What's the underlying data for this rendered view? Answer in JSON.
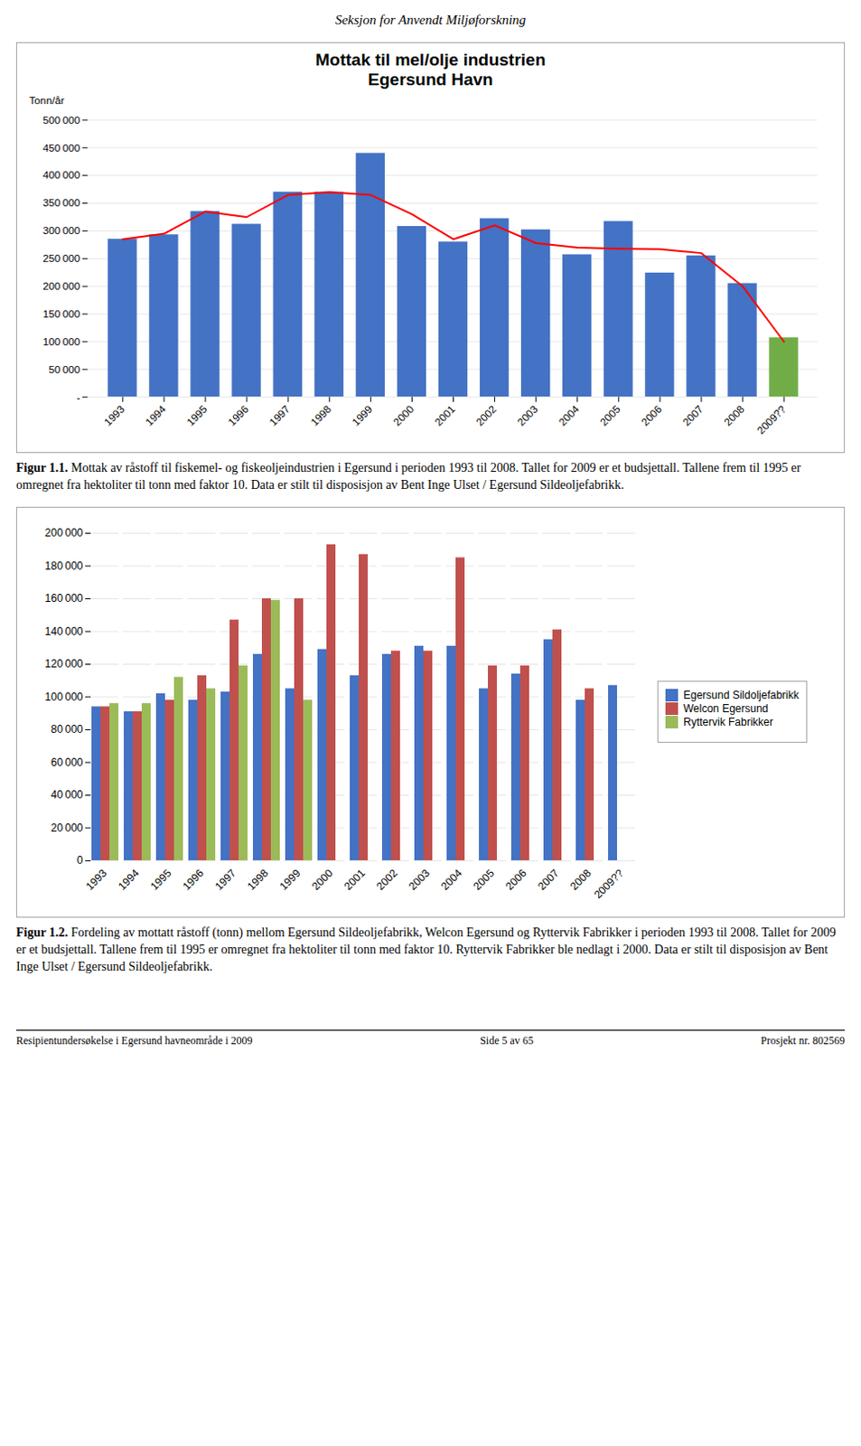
{
  "page_header": "Seksjon for Anvendt Miljøforskning",
  "page_footer_left": "Resipientundersøkelse i Egersund havneområde i 2009",
  "page_footer_center": "Side 5 av 65",
  "page_footer_right": "Prosjekt nr. 802569",
  "chart_data": [
    {
      "type": "bar",
      "title": "Mottak til mel/olje industrien",
      "subtitle": "Egersund Havn",
      "ylabel": "Tonn/år",
      "figure_label": "Figur 1.1.",
      "caption": "Mottak av råstoff til fiskemel- og fiskeoljeindustrien i Egersund i perioden 1993 til 2008. Tallet for 2009 er et budsjettall. Tallene frem til 1995 er omregnet fra hektoliter til tonn med faktor 10. Data er stilt til disposisjon av Bent Inge Ulset / Egersund Sildeoljefabrikk.",
      "categories": [
        "1993",
        "1994",
        "1995",
        "1996",
        "1997",
        "1998",
        "1999",
        "2000",
        "2001",
        "2002",
        "2003",
        "2004",
        "2005",
        "2006",
        "2007",
        "2008",
        "2009??"
      ],
      "series": [
        {
          "type": "bar",
          "values": [
            285000,
            293000,
            335000,
            312000,
            370000,
            370000,
            440000,
            308000,
            280000,
            322000,
            302000,
            257000,
            317000,
            224000,
            255000,
            205000,
            107000
          ],
          "colors": [
            "#4472C4",
            "#4472C4",
            "#4472C4",
            "#4472C4",
            "#4472C4",
            "#4472C4",
            "#4472C4",
            "#4472C4",
            "#4472C4",
            "#4472C4",
            "#4472C4",
            "#4472C4",
            "#4472C4",
            "#4472C4",
            "#4472C4",
            "#4472C4",
            "#70AD47"
          ]
        },
        {
          "type": "line",
          "color": "#FF0000",
          "values": [
            285000,
            295000,
            335000,
            325000,
            365000,
            370000,
            365000,
            330000,
            285000,
            310000,
            278000,
            270000,
            268000,
            267000,
            260000,
            200000,
            100000
          ]
        }
      ],
      "ylim": [
        0,
        500000
      ],
      "yticks": [
        {
          "value": 0,
          "label": "-"
        },
        {
          "value": 50000,
          "label": "50 000"
        },
        {
          "value": 100000,
          "label": "100 000"
        },
        {
          "value": 150000,
          "label": "150 000"
        },
        {
          "value": 200000,
          "label": "200 000"
        },
        {
          "value": 250000,
          "label": "250 000"
        },
        {
          "value": 300000,
          "label": "300 000"
        },
        {
          "value": 350000,
          "label": "350 000"
        },
        {
          "value": 400000,
          "label": "400 000"
        },
        {
          "value": 450000,
          "label": "450 000"
        },
        {
          "value": 500000,
          "label": "500 000"
        }
      ],
      "grid": true
    },
    {
      "type": "bar",
      "figure_label": "Figur 1.2.",
      "caption": "Fordeling av mottatt råstoff (tonn) mellom Egersund Sildeoljefabrikk, Welcon Egersund og Ryttervik Fabrikker i perioden 1993 til 2008. Tallet for 2009 er et budsjettall. Tallene frem til 1995 er omregnet fra hektoliter til tonn med faktor 10. Ryttervik Fabrikker ble nedlagt i 2000. Data er stilt til disposisjon av Bent Inge Ulset / Egersund Sildeoljefabrikk.",
      "categories": [
        "1993",
        "1994",
        "1995",
        "1996",
        "1997",
        "1998",
        "1999",
        "2000",
        "2001",
        "2002",
        "2003",
        "2004",
        "2005",
        "2006",
        "2007",
        "2008",
        "2009??"
      ],
      "series": [
        {
          "name": "Egersund Sildoljefabrikk",
          "color": "#4472C4",
          "values": [
            94000,
            91000,
            102000,
            98000,
            103000,
            126000,
            105000,
            129000,
            113000,
            126000,
            131000,
            131000,
            105000,
            114000,
            135000,
            98000,
            107000
          ]
        },
        {
          "name": "Welcon Egersund",
          "color": "#C0504D",
          "values": [
            94000,
            91000,
            98000,
            113000,
            147000,
            160000,
            160000,
            193000,
            187000,
            128000,
            128000,
            185000,
            119000,
            119000,
            141000,
            105000,
            0
          ]
        },
        {
          "name": "Ryttervik Fabrikker",
          "color": "#9BBB59",
          "values": [
            96000,
            96000,
            112000,
            105000,
            119000,
            159000,
            98000,
            0,
            0,
            0,
            0,
            0,
            0,
            0,
            0,
            0,
            0
          ]
        }
      ],
      "ylim": [
        0,
        200000
      ],
      "yticks": [
        0,
        {
          "value": 20000,
          "label": "20 000"
        },
        {
          "value": 40000,
          "label": "40 000"
        },
        {
          "value": 60000,
          "label": "60 000"
        },
        {
          "value": 80000,
          "label": "80 000"
        },
        {
          "value": 100000,
          "label": "100 000"
        },
        {
          "value": 120000,
          "label": "120 000"
        },
        {
          "value": 140000,
          "label": "140 000"
        },
        {
          "value": 160000,
          "label": "160 000"
        },
        {
          "value": 180000,
          "label": "180 000"
        },
        {
          "value": 200000,
          "label": "200 000"
        }
      ],
      "grid": true,
      "legend": "right"
    }
  ]
}
